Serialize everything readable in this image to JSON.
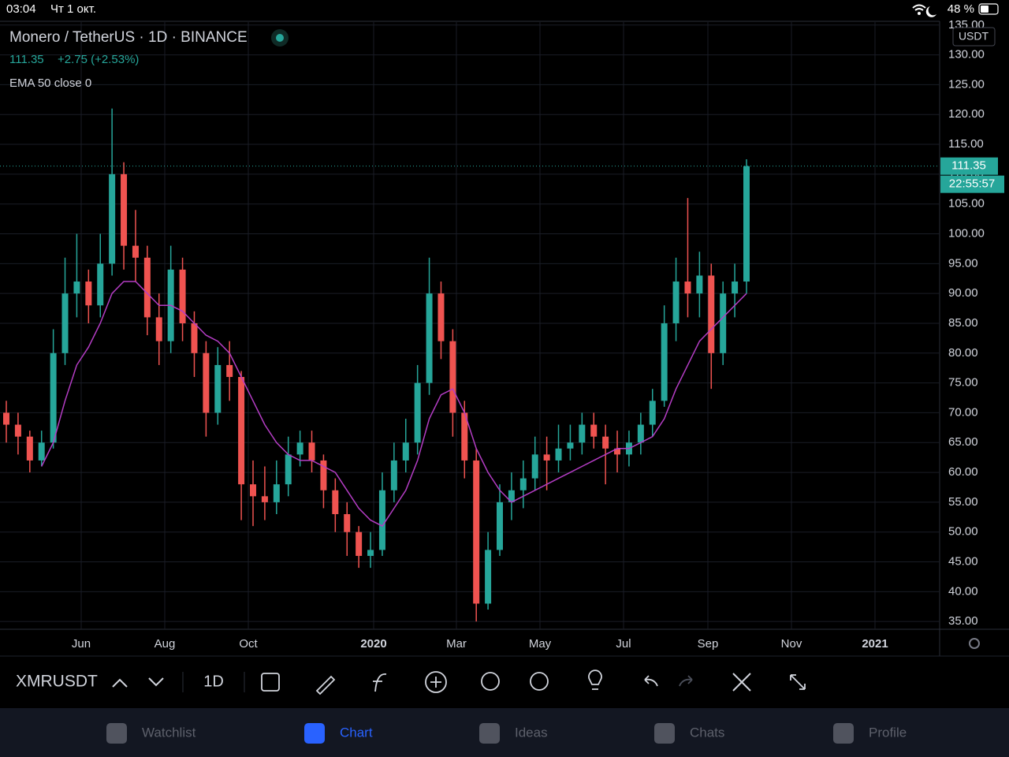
{
  "status_bar": {
    "time": "03:04",
    "date": "Чт 1 окт.",
    "battery": "48 %"
  },
  "chart_data": {
    "type": "candlestick",
    "title": "Monero / TetherUS · 1D · BINANCE",
    "last_price": 111.35,
    "change": "+2.75 (+2.53%)",
    "indicator": "EMA 50 close 0",
    "currency": "USDT",
    "countdown": "22:55:57",
    "x_labels": [
      "Jun",
      "Aug",
      "Oct",
      "2020",
      "Mar",
      "May",
      "Jul",
      "Sep",
      "Nov",
      "2021"
    ],
    "up_color": "#26a69a",
    "down_color": "#ef5350",
    "open": [
      70,
      68,
      66,
      62,
      65,
      80,
      90,
      92,
      88,
      95,
      110,
      98,
      96,
      86,
      82,
      94,
      85,
      80,
      70,
      78,
      76,
      58,
      56,
      55,
      58,
      63,
      65,
      62,
      57,
      53,
      50,
      46,
      47,
      57,
      62,
      65,
      75,
      90,
      82,
      70,
      62,
      38,
      47,
      55,
      57,
      59,
      63,
      62,
      64,
      65,
      68,
      66,
      64,
      63,
      65,
      68,
      72,
      85,
      92,
      90,
      93,
      80,
      90,
      92
    ],
    "high": [
      72,
      70,
      67,
      67,
      84,
      96,
      100,
      94,
      100,
      121,
      112,
      104,
      98,
      90,
      98,
      96,
      87,
      82,
      81,
      82,
      77,
      62,
      61,
      62,
      66,
      67,
      67,
      63,
      59,
      55,
      51,
      50,
      60,
      65,
      69,
      78,
      96,
      92,
      84,
      72,
      64,
      50,
      58,
      60,
      62,
      66,
      66,
      68,
      68,
      70,
      70,
      68,
      67,
      67,
      70,
      74,
      88,
      96,
      106,
      97,
      95,
      92,
      95,
      112.5
    ],
    "low": [
      65,
      63,
      60,
      61,
      64,
      78,
      86,
      85,
      86,
      93,
      94,
      92,
      83,
      78,
      80,
      82,
      76,
      66,
      68,
      72,
      52,
      51,
      52,
      53,
      56,
      61,
      60,
      54,
      50,
      46,
      44,
      44,
      46,
      55,
      60,
      63,
      73,
      79,
      66,
      59,
      35,
      37,
      46,
      52,
      54,
      57,
      57,
      60,
      62,
      63,
      64,
      58,
      60,
      61,
      63,
      66,
      71,
      82,
      86,
      86,
      74,
      78,
      86,
      90
    ],
    "close": [
      68,
      66,
      62,
      65,
      80,
      90,
      92,
      88,
      95,
      110,
      98,
      96,
      86,
      82,
      94,
      85,
      80,
      70,
      78,
      76,
      58,
      56,
      55,
      58,
      63,
      65,
      62,
      57,
      53,
      50,
      46,
      47,
      57,
      62,
      65,
      75,
      90,
      82,
      70,
      62,
      38,
      47,
      55,
      57,
      59,
      63,
      62,
      64,
      65,
      68,
      66,
      64,
      63,
      65,
      68,
      72,
      85,
      92,
      90,
      93,
      80,
      90,
      92,
      111.35
    ],
    "ema": {
      "color": "#b43dc4",
      "values": [
        null,
        null,
        null,
        61,
        65,
        72,
        78,
        81,
        85,
        90,
        92,
        92,
        90,
        88,
        88,
        87,
        85,
        83,
        82,
        80,
        76,
        72,
        68,
        65,
        63,
        62,
        62,
        61,
        60,
        57,
        54,
        52,
        51,
        54,
        57,
        62,
        69,
        73,
        74,
        70,
        64,
        60,
        57,
        55,
        56,
        57,
        58,
        59,
        60,
        61,
        62,
        63,
        64,
        64,
        65,
        66,
        69,
        74,
        78,
        82,
        84,
        86,
        88,
        90
      ]
    },
    "ylim": [
      33.7,
      135.5
    ],
    "yticks": [
      {
        "value": 35,
        "label": "35.00"
      },
      {
        "value": 40,
        "label": "40.00"
      },
      {
        "value": 45,
        "label": "45.00"
      },
      {
        "value": 50,
        "label": "50.00"
      },
      {
        "value": 55,
        "label": "55.00"
      },
      {
        "value": 60,
        "label": "60.00"
      },
      {
        "value": 65,
        "label": "65.00"
      },
      {
        "value": 70,
        "label": "70.00"
      },
      {
        "value": 75,
        "label": "75.00"
      },
      {
        "value": 80,
        "label": "80.00"
      },
      {
        "value": 85,
        "label": "85.00"
      },
      {
        "value": 90,
        "label": "90.00"
      },
      {
        "value": 95,
        "label": "95.00"
      },
      {
        "value": 100,
        "label": "100.00"
      },
      {
        "value": 105,
        "label": "105.00"
      },
      {
        "value": 110,
        "label": "110.00"
      },
      {
        "value": 115,
        "label": "115.00"
      },
      {
        "value": 120,
        "label": "120.00"
      },
      {
        "value": 125,
        "label": "125.00"
      },
      {
        "value": 130,
        "label": "130.00"
      },
      {
        "value": 135,
        "label": "135.00"
      }
    ],
    "grid": true
  },
  "toolbar": {
    "symbol": "XMRUSDT",
    "interval": "1D"
  },
  "tabs": [
    "Watchlist",
    "Chart",
    "Ideas",
    "Chats",
    "Profile"
  ]
}
